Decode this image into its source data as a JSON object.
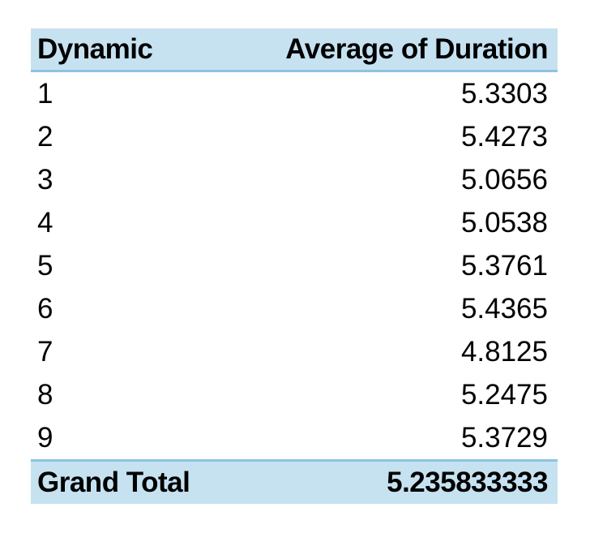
{
  "chart_data": {
    "type": "table",
    "headers": [
      "Dynamic",
      "Average of Duration"
    ],
    "rows": [
      {
        "label": "1",
        "value": "5.3303"
      },
      {
        "label": "2",
        "value": "5.4273"
      },
      {
        "label": "3",
        "value": "5.0656"
      },
      {
        "label": "4",
        "value": "5.0538"
      },
      {
        "label": "5",
        "value": "5.3761"
      },
      {
        "label": "6",
        "value": "5.4365"
      },
      {
        "label": "7",
        "value": "4.8125"
      },
      {
        "label": "8",
        "value": "5.2475"
      },
      {
        "label": "9",
        "value": "5.3729"
      }
    ],
    "total": {
      "label": "Grand Total",
      "value": "5.235833333"
    }
  },
  "colors": {
    "header_fill": "#c6e2f1",
    "border": "#8ec3e2"
  }
}
